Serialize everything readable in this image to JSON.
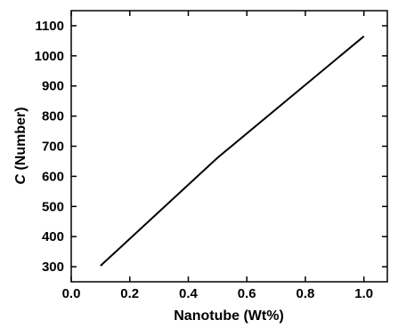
{
  "chart_data": {
    "type": "line",
    "title": "",
    "xlabel": "Nanotube (Wt%)",
    "ylabel": {
      "symbol": "C",
      "text": " (Number)"
    },
    "xlim": [
      0.0,
      1.08
    ],
    "ylim": [
      250,
      1150
    ],
    "xticks": [
      0.0,
      0.2,
      0.4,
      0.6,
      0.8,
      1.0
    ],
    "xtick_labels": [
      "0.0",
      "0.2",
      "0.4",
      "0.6",
      "0.8",
      "1.0"
    ],
    "yticks": [
      300,
      400,
      500,
      600,
      700,
      800,
      900,
      1000,
      1100
    ],
    "ytick_labels": [
      "300",
      "400",
      "500",
      "600",
      "700",
      "800",
      "900",
      "1000",
      "1100"
    ],
    "grid": false,
    "legend": "none",
    "series": [
      {
        "x": [
          0.1,
          0.5,
          1.0
        ],
        "y": [
          303,
          662,
          1065
        ],
        "color": "#000000"
      }
    ]
  }
}
